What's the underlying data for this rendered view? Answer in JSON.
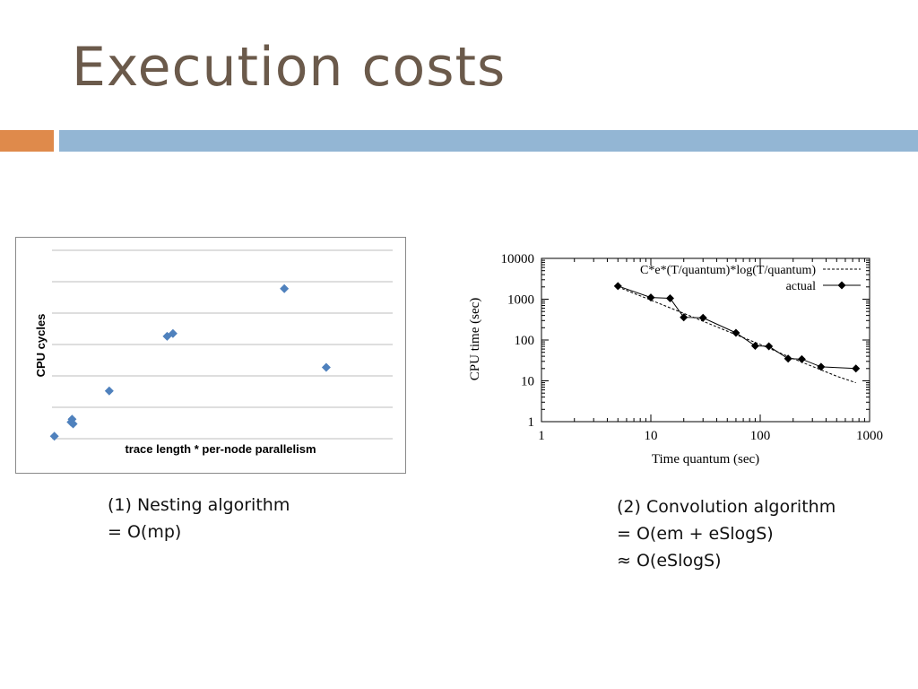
{
  "slide": {
    "title": "Execution costs",
    "accent_orange": "#df8a4b",
    "accent_blue": "#93b6d4",
    "title_color": "#6b5a4b"
  },
  "captions": {
    "left": [
      "(1) Nesting algorithm",
      "= O(mp)"
    ],
    "right": [
      "(2) Convolution algorithm",
      "= O(em + eSlogS)",
      "≈ O(eSlogS)"
    ]
  },
  "chart_data": [
    {
      "type": "scatter",
      "title": "",
      "xlabel": "trace length * per-node parallelism",
      "ylabel": "CPU cycles",
      "xlim": [
        0,
        100
      ],
      "ylim": [
        0,
        60
      ],
      "grid": "horizontal",
      "tick_labels_shown": false,
      "marker": "diamond",
      "color": "#4f81bd",
      "points": [
        {
          "x": 0.7,
          "y": 0.8
        },
        {
          "x": 5.6,
          "y": 5.3
        },
        {
          "x": 5.9,
          "y": 6.2
        },
        {
          "x": 6.2,
          "y": 4.7
        },
        {
          "x": 16.8,
          "y": 15.2
        },
        {
          "x": 33.8,
          "y": 32.6
        },
        {
          "x": 35.5,
          "y": 33.5
        },
        {
          "x": 68.2,
          "y": 47.8
        },
        {
          "x": 80.5,
          "y": 22.7
        }
      ]
    },
    {
      "type": "line",
      "title": "",
      "xlabel": "Time quantum (sec)",
      "ylabel": "CPU time (sec)",
      "xscale": "log",
      "yscale": "log",
      "xlim": [
        1,
        1000
      ],
      "ylim": [
        1,
        10000
      ],
      "xticks": [
        "1",
        "10",
        "100",
        "1000"
      ],
      "yticks": [
        "1",
        "10",
        "100",
        "1000",
        "10000"
      ],
      "legend": "top-right",
      "series": [
        {
          "name": "C*e*(T/quantum)*log(T/quantum)",
          "style": "dashed",
          "x": [
            5,
            10,
            20,
            50,
            100,
            200,
            500,
            750
          ],
          "y": [
            2000,
            950,
            450,
            165,
            78,
            35,
            13,
            9
          ]
        },
        {
          "name": "actual",
          "style": "solid",
          "marker": "diamond",
          "x": [
            5,
            10,
            15,
            20,
            30,
            60,
            90,
            120,
            180,
            240,
            360,
            750
          ],
          "y": [
            2100,
            1100,
            1050,
            360,
            350,
            150,
            72,
            70,
            35,
            34,
            22,
            20
          ]
        }
      ]
    }
  ]
}
